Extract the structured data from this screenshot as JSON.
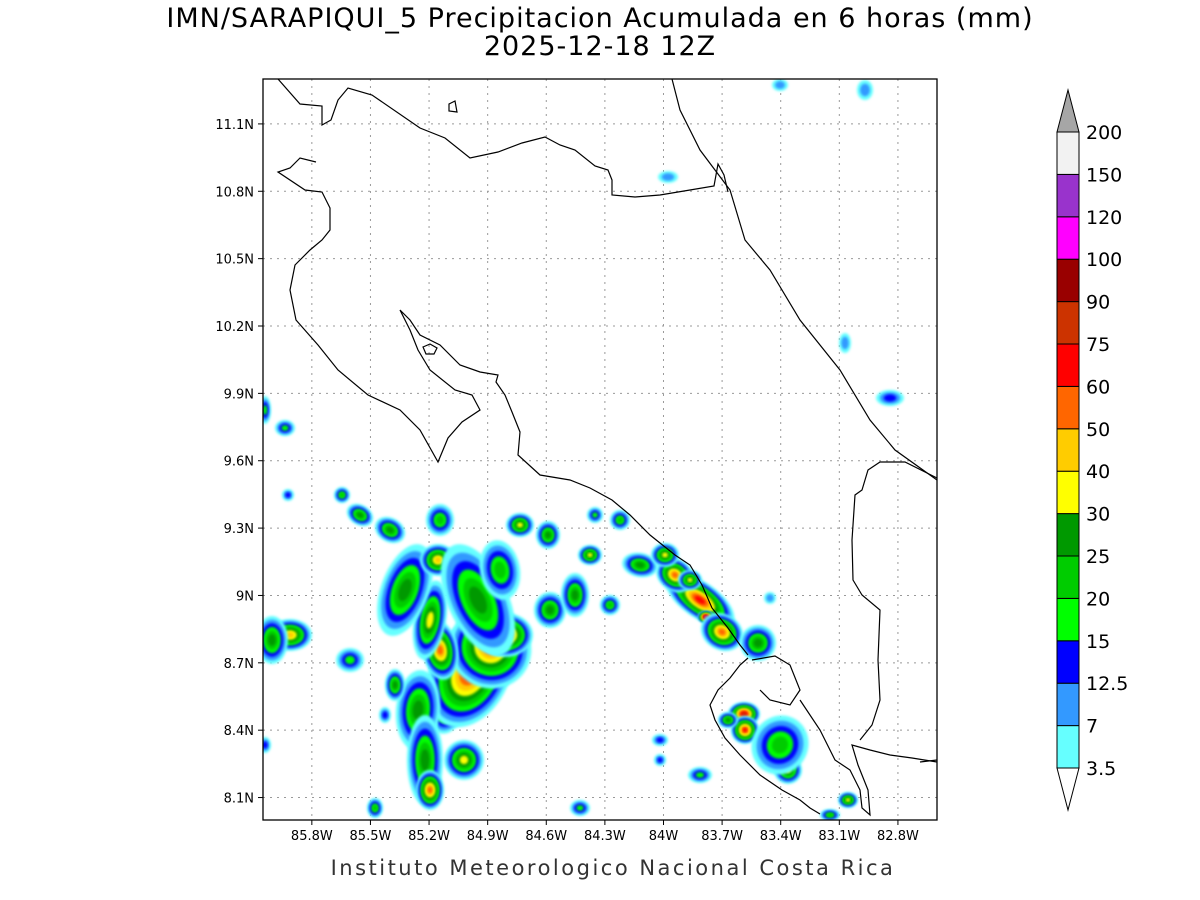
{
  "title": {
    "line1": "IMN/SARAPIQUI_5 Precipitacion Acumulada en 6 horas (mm)",
    "line2": "2025-12-18 12Z"
  },
  "credit": "Instituto Meteorologico Nacional Costa Rica",
  "map": {
    "lon_range": [
      -86.05,
      -82.6
    ],
    "lat_range": [
      8.0,
      11.3
    ],
    "lon_ticks": [
      {
        "value": -85.8,
        "label": "85.8W"
      },
      {
        "value": -85.5,
        "label": "85.5W"
      },
      {
        "value": -85.2,
        "label": "85.2W"
      },
      {
        "value": -84.9,
        "label": "84.9W"
      },
      {
        "value": -84.6,
        "label": "84.6W"
      },
      {
        "value": -84.3,
        "label": "84.3W"
      },
      {
        "value": -84.0,
        "label": "84W"
      },
      {
        "value": -83.7,
        "label": "83.7W"
      },
      {
        "value": -83.4,
        "label": "83.4W"
      },
      {
        "value": -83.1,
        "label": "83.1W"
      },
      {
        "value": -82.8,
        "label": "82.8W"
      }
    ],
    "lat_ticks": [
      {
        "value": 8.1,
        "label": "8.1N"
      },
      {
        "value": 8.4,
        "label": "8.4N"
      },
      {
        "value": 8.7,
        "label": "8.7N"
      },
      {
        "value": 9.0,
        "label": "9N"
      },
      {
        "value": 9.3,
        "label": "9.3N"
      },
      {
        "value": 9.6,
        "label": "9.6N"
      },
      {
        "value": 9.9,
        "label": "9.9N"
      },
      {
        "value": 10.2,
        "label": "10.2N"
      },
      {
        "value": 10.5,
        "label": "10.5N"
      },
      {
        "value": 10.8,
        "label": "10.8N"
      },
      {
        "value": 11.1,
        "label": "11.1N"
      }
    ],
    "grid": true
  },
  "colorbar": {
    "levels": [
      {
        "label": "3.5",
        "color": "#66ffff"
      },
      {
        "label": "7",
        "color": "#3399ff"
      },
      {
        "label": "12.5",
        "color": "#0000ff"
      },
      {
        "label": "15",
        "color": "#00ff00"
      },
      {
        "label": "20",
        "color": "#00cc00"
      },
      {
        "label": "25",
        "color": "#009900"
      },
      {
        "label": "30",
        "color": "#ffff00"
      },
      {
        "label": "40",
        "color": "#ffcc00"
      },
      {
        "label": "50",
        "color": "#ff6600"
      },
      {
        "label": "60",
        "color": "#ff0000"
      },
      {
        "label": "75",
        "color": "#cc3300"
      },
      {
        "label": "90",
        "color": "#990000"
      },
      {
        "label": "100",
        "color": "#ff00ff"
      },
      {
        "label": "120",
        "color": "#9933cc"
      },
      {
        "label": "150",
        "color": "#f2f2f2"
      },
      {
        "label": "200",
        "color": "#a6a6a6"
      }
    ],
    "under_color": "#ffffff",
    "over_color": "#a6a6a6"
  }
}
